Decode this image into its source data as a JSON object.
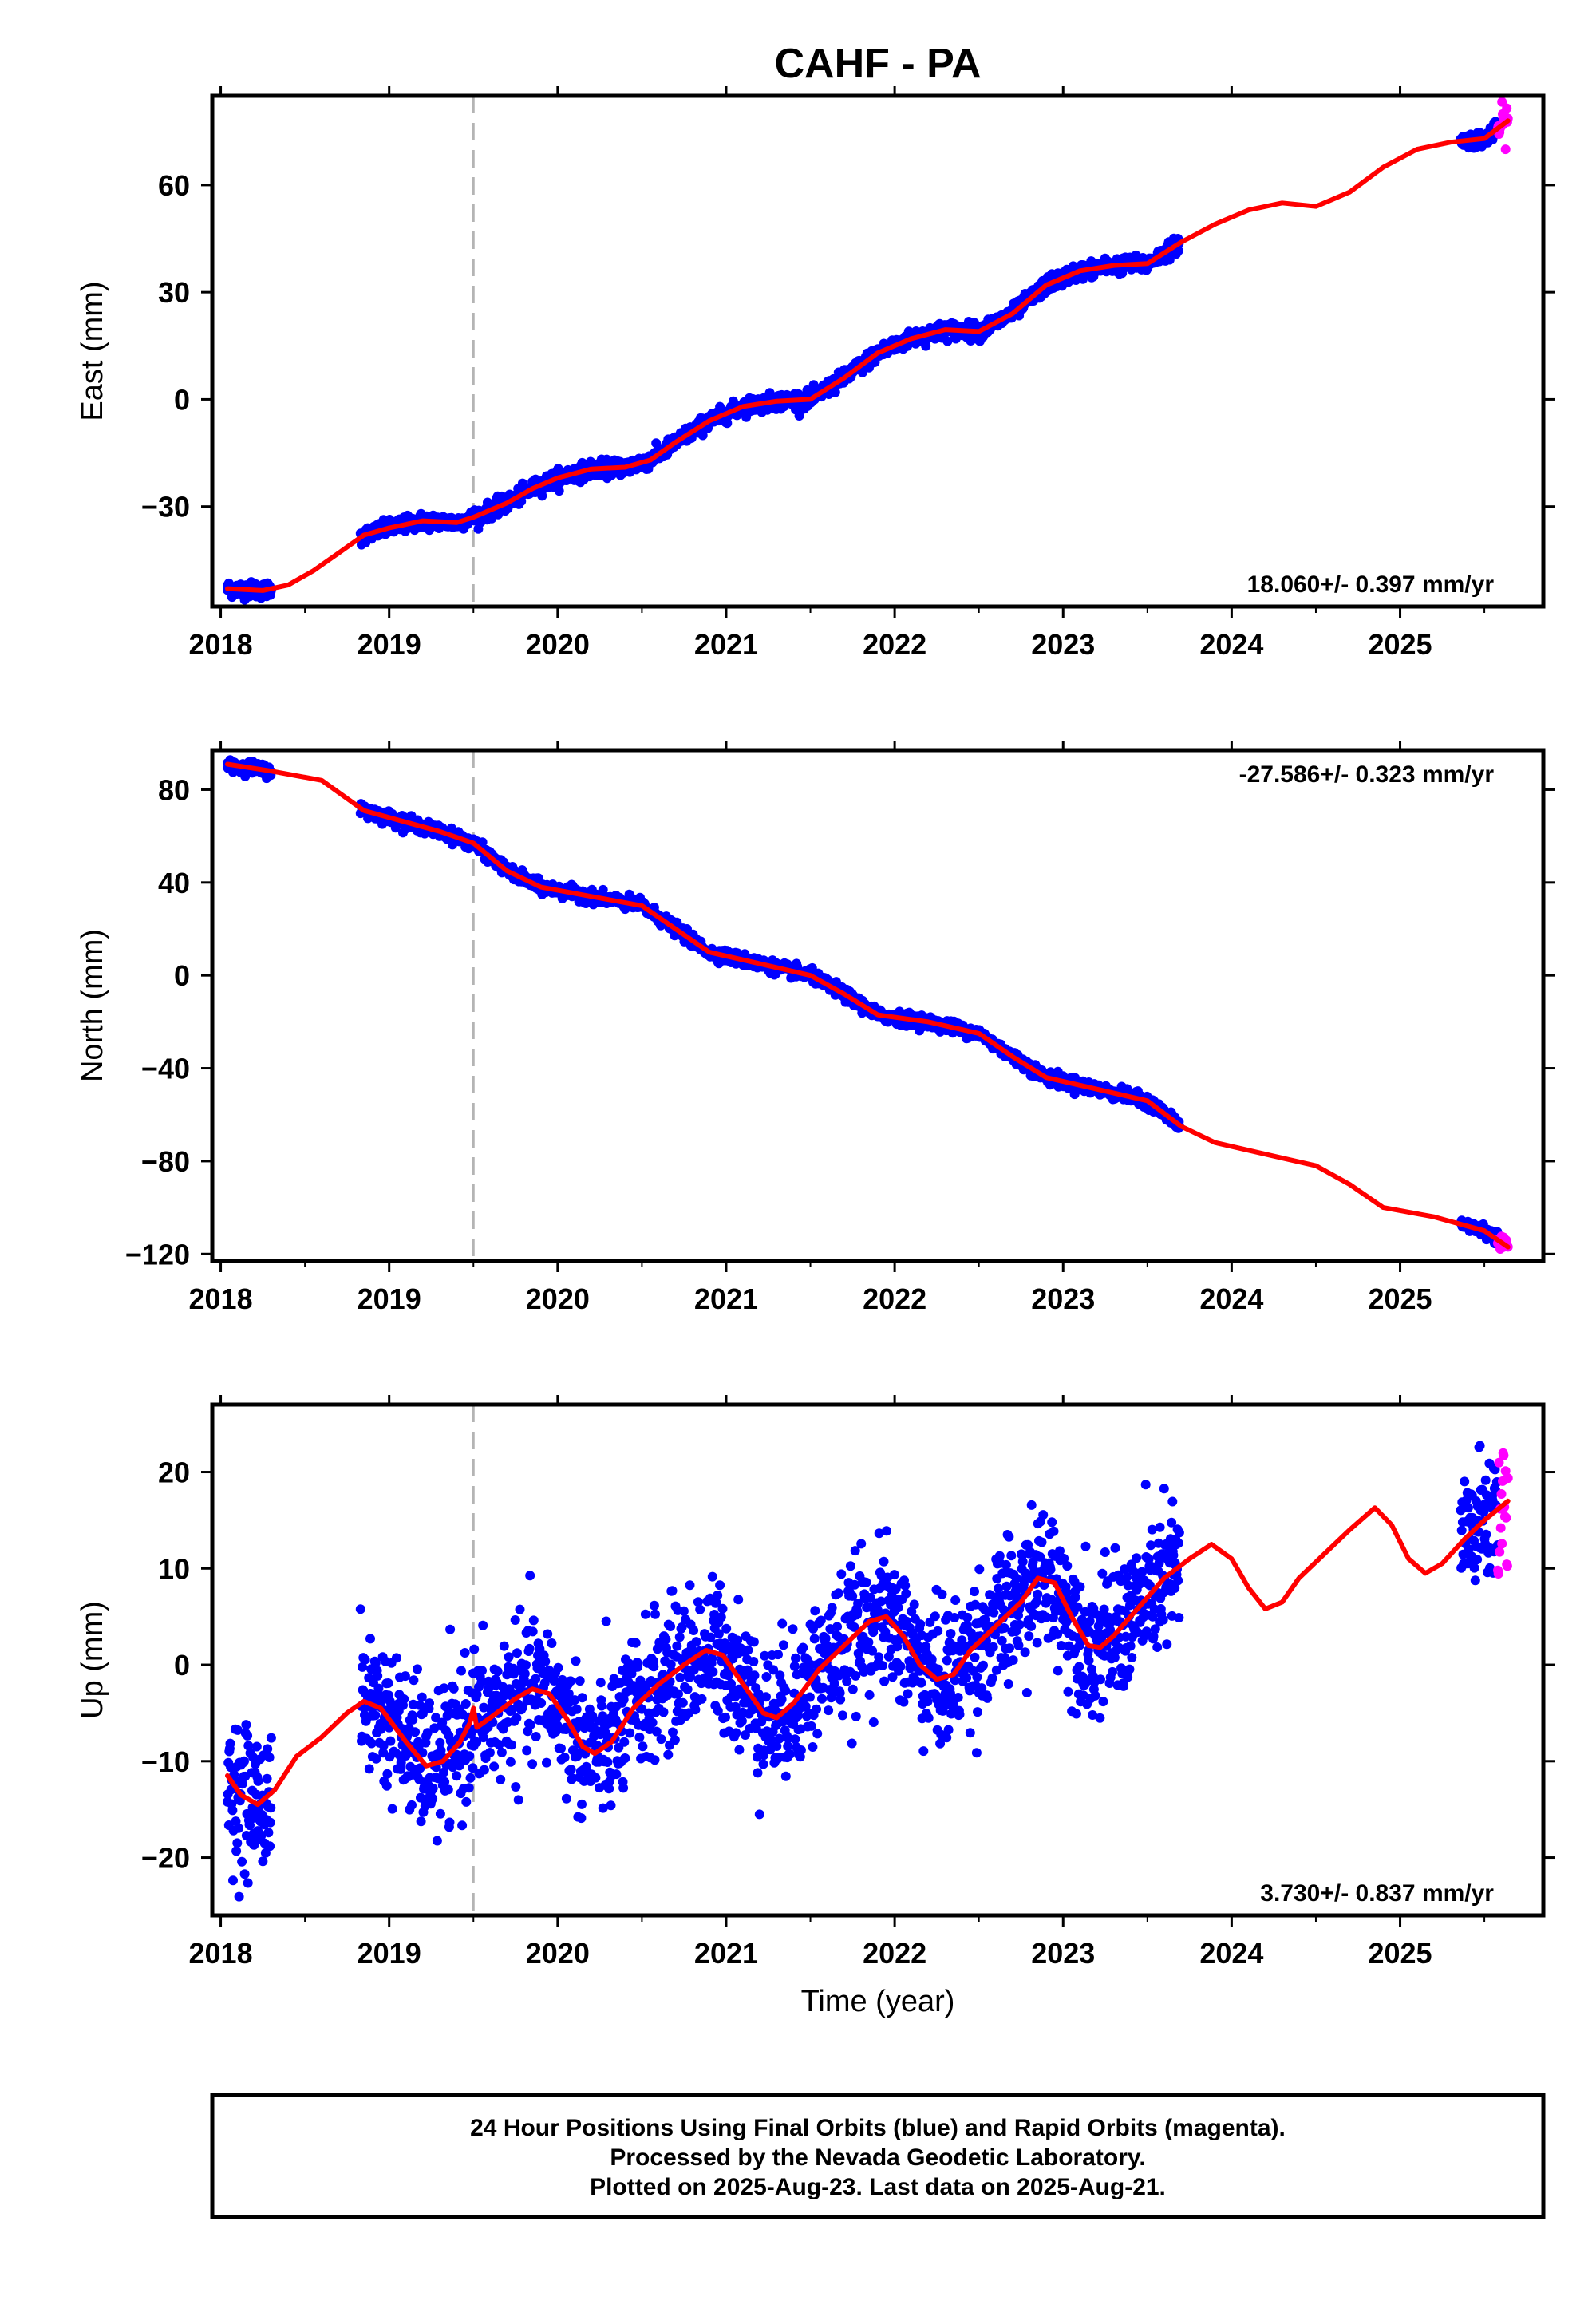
{
  "title": "CAHF - PA",
  "x_axis_label": "Time (year)",
  "colors": {
    "final_orbits": "#0000ff",
    "rapid_orbits": "#ff00ff",
    "model": "#ff0000",
    "event_line": "#b4b4b4",
    "frame": "#000000"
  },
  "footer": {
    "line1": "24 Hour Positions Using Final Orbits (blue) and Rapid Orbits (magenta).",
    "line2": "Processed by the Nevada Geodetic Laboratory.",
    "line3": "Plotted on 2025-Aug-23. Last data on 2025-Aug-21."
  },
  "chart_data": [
    {
      "type": "scatter",
      "component": "east",
      "ylabel": "East (mm)",
      "xlim": [
        2017.95,
        2025.85
      ],
      "ylim": [
        -58,
        85
      ],
      "x_ticks": [
        2018,
        2019,
        2020,
        2021,
        2022,
        2023,
        2024,
        2025
      ],
      "y_ticks": [
        -30,
        0,
        30,
        60
      ],
      "y_tick_labels": [
        "−30",
        "0",
        "30",
        "60"
      ],
      "rate_text": "18.060+/- 0.397 mm/yr",
      "rate_position": "bottom-right",
      "event_line_x": 2019.5,
      "final_orbit_segments": [
        [
          2018.04,
          2018.3
        ],
        [
          2018.83,
          2023.69
        ],
        [
          2025.36,
          2025.58
        ]
      ],
      "rapid_orbit_segment": [
        2025.58,
        2025.64
      ],
      "final_orbit_scatter_sd": 1.1,
      "rapid_orbit_scatter_sd": 2.5,
      "model_curve": [
        [
          2018.04,
          -53
        ],
        [
          2018.25,
          -53.5
        ],
        [
          2018.4,
          -52
        ],
        [
          2018.55,
          -48
        ],
        [
          2018.7,
          -43
        ],
        [
          2018.85,
          -38
        ],
        [
          2019.0,
          -36
        ],
        [
          2019.2,
          -34
        ],
        [
          2019.4,
          -34.5
        ],
        [
          2019.5,
          -33
        ],
        [
          2019.7,
          -29
        ],
        [
          2019.85,
          -25
        ],
        [
          2020.0,
          -22
        ],
        [
          2020.2,
          -19.5
        ],
        [
          2020.4,
          -19
        ],
        [
          2020.55,
          -17
        ],
        [
          2020.7,
          -12
        ],
        [
          2020.9,
          -6
        ],
        [
          2021.1,
          -2
        ],
        [
          2021.3,
          -0.5
        ],
        [
          2021.5,
          0
        ],
        [
          2021.7,
          6
        ],
        [
          2021.9,
          13
        ],
        [
          2022.1,
          17
        ],
        [
          2022.3,
          19.5
        ],
        [
          2022.5,
          19
        ],
        [
          2022.7,
          24
        ],
        [
          2022.9,
          32
        ],
        [
          2023.1,
          36
        ],
        [
          2023.3,
          37.5
        ],
        [
          2023.5,
          38
        ],
        [
          2023.7,
          44
        ],
        [
          2023.9,
          49
        ],
        [
          2024.1,
          53
        ],
        [
          2024.3,
          55
        ],
        [
          2024.5,
          54
        ],
        [
          2024.7,
          58
        ],
        [
          2024.9,
          65
        ],
        [
          2025.1,
          70
        ],
        [
          2025.3,
          72
        ],
        [
          2025.5,
          73
        ],
        [
          2025.64,
          78
        ]
      ]
    },
    {
      "type": "scatter",
      "component": "north",
      "ylabel": "North (mm)",
      "xlim": [
        2017.95,
        2025.85
      ],
      "ylim": [
        -123,
        97
      ],
      "x_ticks": [
        2018,
        2019,
        2020,
        2021,
        2022,
        2023,
        2024,
        2025
      ],
      "y_ticks": [
        -120,
        -80,
        -40,
        0,
        40,
        80
      ],
      "y_tick_labels": [
        "−120",
        "−80",
        "−40",
        "0",
        "40",
        "80"
      ],
      "rate_text": "-27.586+/- 0.323 mm/yr",
      "rate_position": "top-right",
      "event_line_x": 2019.5,
      "final_orbit_segments": [
        [
          2018.04,
          2018.3
        ],
        [
          2018.83,
          2023.69
        ],
        [
          2025.36,
          2025.58
        ]
      ],
      "rapid_orbit_segment": [
        2025.58,
        2025.64
      ],
      "final_orbit_scatter_sd": 1.3,
      "rapid_orbit_scatter_sd": 1.5,
      "model_curve": [
        [
          2018.04,
          91
        ],
        [
          2018.3,
          88
        ],
        [
          2018.6,
          84
        ],
        [
          2018.85,
          71
        ],
        [
          2019.1,
          66
        ],
        [
          2019.3,
          62
        ],
        [
          2019.5,
          57
        ],
        [
          2019.7,
          45
        ],
        [
          2019.9,
          38
        ],
        [
          2020.2,
          34
        ],
        [
          2020.5,
          30
        ],
        [
          2020.7,
          20
        ],
        [
          2020.9,
          10
        ],
        [
          2021.2,
          5
        ],
        [
          2021.5,
          0
        ],
        [
          2021.7,
          -8
        ],
        [
          2021.9,
          -17
        ],
        [
          2022.2,
          -20
        ],
        [
          2022.5,
          -25
        ],
        [
          2022.7,
          -35
        ],
        [
          2022.9,
          -44
        ],
        [
          2023.2,
          -49
        ],
        [
          2023.5,
          -54
        ],
        [
          2023.7,
          -65
        ],
        [
          2023.9,
          -72
        ],
        [
          2024.2,
          -77
        ],
        [
          2024.5,
          -82
        ],
        [
          2024.7,
          -90
        ],
        [
          2024.9,
          -100
        ],
        [
          2025.2,
          -104
        ],
        [
          2025.5,
          -110
        ],
        [
          2025.64,
          -117
        ]
      ]
    },
    {
      "type": "scatter",
      "component": "up",
      "ylabel": "Up (mm)",
      "xlim": [
        2017.95,
        2025.85
      ],
      "ylim": [
        -26,
        27
      ],
      "x_ticks": [
        2018,
        2019,
        2020,
        2021,
        2022,
        2023,
        2024,
        2025
      ],
      "y_ticks": [
        -20,
        -10,
        0,
        10,
        20
      ],
      "y_tick_labels": [
        "−20",
        "−10",
        "0",
        "10",
        "20"
      ],
      "rate_text": "3.730+/- 0.837 mm/yr",
      "rate_position": "bottom-right",
      "event_line_x": 2019.5,
      "final_orbit_segments": [
        [
          2018.04,
          2018.3
        ],
        [
          2018.83,
          2023.69
        ],
        [
          2025.36,
          2025.58
        ]
      ],
      "rapid_orbit_segment": [
        2025.58,
        2025.64
      ],
      "final_orbit_scatter_sd": 3.6,
      "rapid_orbit_scatter_sd": 4.5,
      "model_curve": [
        [
          2018.04,
          -11.5
        ],
        [
          2018.12,
          -13.5
        ],
        [
          2018.22,
          -14.5
        ],
        [
          2018.32,
          -13
        ],
        [
          2018.45,
          -9.5
        ],
        [
          2018.6,
          -7.5
        ],
        [
          2018.75,
          -5
        ],
        [
          2018.85,
          -3.8
        ],
        [
          2018.95,
          -4.5
        ],
        [
          2019.1,
          -8
        ],
        [
          2019.22,
          -10.5
        ],
        [
          2019.32,
          -10
        ],
        [
          2019.42,
          -8
        ],
        [
          2019.48,
          -6
        ],
        [
          2019.5,
          -4.5
        ],
        [
          2019.52,
          -6.5
        ],
        [
          2019.6,
          -5.5
        ],
        [
          2019.75,
          -3.5
        ],
        [
          2019.85,
          -2.5
        ],
        [
          2019.95,
          -3
        ],
        [
          2020.05,
          -5.5
        ],
        [
          2020.15,
          -8.5
        ],
        [
          2020.22,
          -9.2
        ],
        [
          2020.32,
          -8
        ],
        [
          2020.45,
          -4.5
        ],
        [
          2020.6,
          -2
        ],
        [
          2020.75,
          0
        ],
        [
          2020.88,
          1.5
        ],
        [
          2020.98,
          1
        ],
        [
          2021.1,
          -2
        ],
        [
          2021.22,
          -5
        ],
        [
          2021.3,
          -5.5
        ],
        [
          2021.4,
          -4
        ],
        [
          2021.55,
          -0.5
        ],
        [
          2021.7,
          2
        ],
        [
          2021.85,
          4.5
        ],
        [
          2021.95,
          5
        ],
        [
          2022.05,
          3
        ],
        [
          2022.15,
          0
        ],
        [
          2022.25,
          -1.5
        ],
        [
          2022.35,
          -1
        ],
        [
          2022.45,
          1.5
        ],
        [
          2022.6,
          4
        ],
        [
          2022.75,
          6.5
        ],
        [
          2022.85,
          9
        ],
        [
          2022.95,
          8.5
        ],
        [
          2023.05,
          5
        ],
        [
          2023.15,
          2
        ],
        [
          2023.22,
          1.8
        ],
        [
          2023.3,
          3
        ],
        [
          2023.45,
          6
        ],
        [
          2023.6,
          9
        ],
        [
          2023.75,
          11
        ],
        [
          2023.88,
          12.5
        ],
        [
          2024.0,
          11
        ],
        [
          2024.1,
          8
        ],
        [
          2024.2,
          5.8
        ],
        [
          2024.3,
          6.5
        ],
        [
          2024.4,
          9
        ],
        [
          2024.55,
          11.5
        ],
        [
          2024.7,
          14
        ],
        [
          2024.85,
          16.3
        ],
        [
          2024.95,
          14.5
        ],
        [
          2025.05,
          11
        ],
        [
          2025.15,
          9.5
        ],
        [
          2025.25,
          10.5
        ],
        [
          2025.38,
          13
        ],
        [
          2025.5,
          15
        ],
        [
          2025.64,
          17
        ]
      ]
    }
  ]
}
